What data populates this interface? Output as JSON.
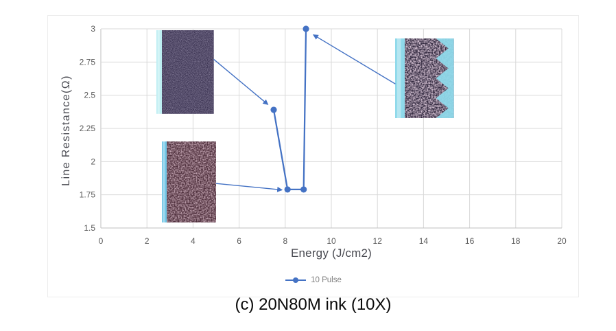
{
  "caption": "(c) 20N80M ink (10X)",
  "colors": {
    "accent": "#4472c4",
    "gridline": "#d9d9d9",
    "axis_line": "#bfbfbf",
    "tick_label": "#595959",
    "axis_title": "#4a4b52",
    "legend_label": "#7f7f7f",
    "caption": "#0a0a0a",
    "panel_border": "#ececec",
    "background": "#ffffff"
  },
  "chart_data": {
    "type": "line",
    "title": "",
    "xlabel": "Energy (J/cm2)",
    "ylabel": "Line Resistance(Ω)",
    "xlim": [
      0,
      20
    ],
    "ylim": [
      1.5,
      3
    ],
    "x_ticks": [
      0,
      2,
      4,
      6,
      8,
      10,
      12,
      14,
      16,
      18,
      20
    ],
    "y_ticks": [
      1.5,
      1.75,
      2,
      2.25,
      2.5,
      2.75,
      3
    ],
    "grid": true,
    "legend_position": "bottom",
    "series": [
      {
        "name": "10 Pulse",
        "color": "#4472c4",
        "points": [
          {
            "x": 7.5,
            "y": 2.39
          },
          {
            "x": 8.1,
            "y": 1.79
          },
          {
            "x": 8.8,
            "y": 1.79
          },
          {
            "x": 8.9,
            "y": 3.0
          }
        ]
      }
    ],
    "annotation_arrows": [
      {
        "name": "arrow-to-point-7p5",
        "x1": 4.9,
        "y1": 2.77,
        "x2": 7.25,
        "y2": 2.43
      },
      {
        "name": "arrow-to-point-8p1",
        "x1": 5.0,
        "y1": 1.835,
        "x2": 7.86,
        "y2": 1.787
      },
      {
        "name": "arrow-to-point-9",
        "x1": 12.78,
        "y1": 2.585,
        "x2": 9.22,
        "y2": 2.955
      }
    ],
    "insets": [
      {
        "id": "inset-a",
        "desc": "micrograph: smooth dark purple ink film with cyan substrate edge",
        "x": [
          2.41,
          4.9
        ],
        "y": [
          2.36,
          2.99
        ],
        "body": "#3b3352",
        "speckle": "#6a5f84",
        "edge": "#bdeef2",
        "edge_width": 8,
        "noise_freq": 0.9,
        "noise_amp": 1.2,
        "noise_off": -0.35,
        "seed": 3,
        "jagged": false
      },
      {
        "id": "inset-b",
        "desc": "micrograph: coarse speckled maroon ink film with cyan substrate edge",
        "x": [
          2.64,
          4.99
        ],
        "y": [
          1.54,
          2.15
        ],
        "body": "#4e2f3c",
        "speckle": "#8a5f70",
        "edge": "#72c7e6",
        "edge_width": 7,
        "noise_freq": 0.5,
        "noise_amp": 2.2,
        "noise_off": -0.7,
        "seed": 7,
        "jagged": false
      },
      {
        "id": "inset-c",
        "desc": "micrograph: ablated mottled film with exposed cyan substrate on both sides",
        "x": [
          12.78,
          15.33
        ],
        "y": [
          2.33,
          2.93
        ],
        "body": "#342b41",
        "speckle": "#a384a0",
        "edge": "#8fd9ea",
        "edge_width": 14,
        "noise_freq": 0.45,
        "noise_amp": 2.4,
        "noise_off": -0.75,
        "seed": 11,
        "jagged": true
      }
    ]
  }
}
